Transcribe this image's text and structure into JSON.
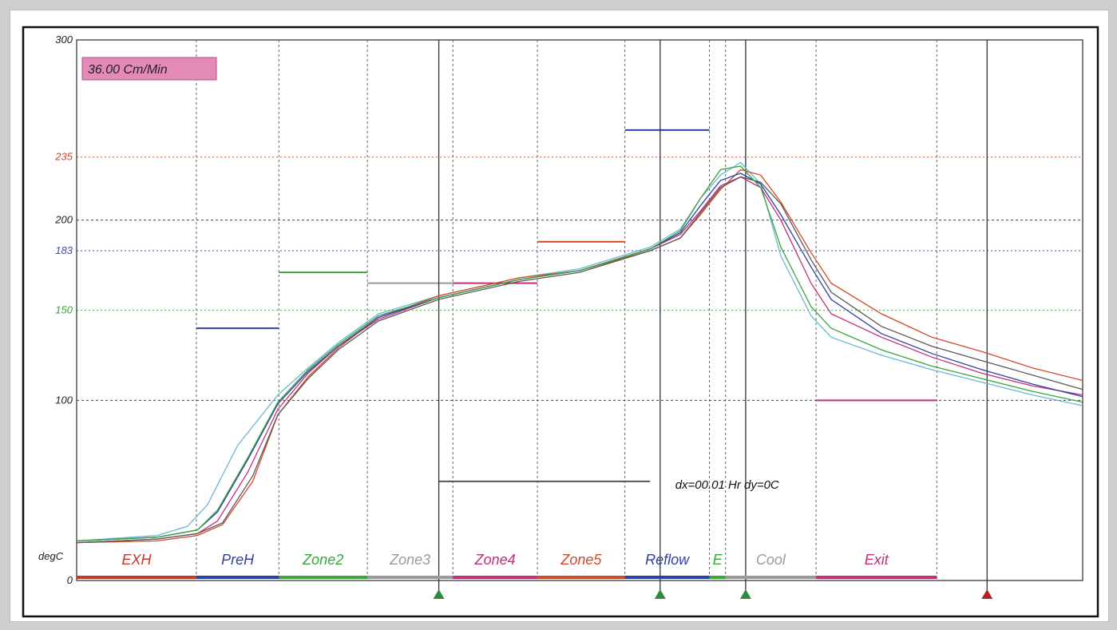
{
  "chart_data": {
    "type": "line",
    "speed_badge": "36.00 Cm/Min",
    "unit_label": "degC",
    "cursor_readout": "dx=00.01 Hr dy=0C",
    "ylim": [
      0,
      300
    ],
    "x_range": [
      0,
      100
    ],
    "y_ticks": [
      {
        "value": 300,
        "label": "300",
        "color": "#222222"
      },
      {
        "value": 235,
        "label": "235",
        "color": "#d04a2a"
      },
      {
        "value": 200,
        "label": "200",
        "color": "#222222"
      },
      {
        "value": 183,
        "label": "183",
        "color": "#3a4ab0"
      },
      {
        "value": 150,
        "label": "150",
        "color": "#3aa53a"
      },
      {
        "value": 100,
        "label": "100",
        "color": "#222222"
      },
      {
        "value": 0,
        "label": "0",
        "color": "#222222"
      }
    ],
    "zones": [
      {
        "name": "EXH",
        "start": 0,
        "end": 11.9,
        "color": "#c0392b",
        "setpoint": 0
      },
      {
        "name": "PreH",
        "start": 11.9,
        "end": 20.1,
        "color": "#2f3fa8",
        "setpoint": 140
      },
      {
        "name": "Zone2",
        "start": 20.1,
        "end": 28.9,
        "color": "#3aa53a",
        "setpoint": 171
      },
      {
        "name": "Zone3",
        "start": 28.9,
        "end": 37.4,
        "color": "#9a9a9a",
        "setpoint": 165
      },
      {
        "name": "Zone4",
        "start": 37.4,
        "end": 45.8,
        "color": "#c2307a",
        "setpoint": 165
      },
      {
        "name": "Zone5",
        "start": 45.8,
        "end": 54.5,
        "color": "#d04a2a",
        "setpoint": 188
      },
      {
        "name": "Reflow",
        "start": 54.5,
        "end": 62.9,
        "color": "#2f3fa8",
        "setpoint": 250
      },
      {
        "name": "E",
        "start": 62.9,
        "end": 64.5,
        "color": "#3aa53a",
        "setpoint": null
      },
      {
        "name": "Cool",
        "start": 64.5,
        "end": 73.5,
        "color": "#9a9a9a",
        "setpoint": null
      },
      {
        "name": "Exit",
        "start": 73.5,
        "end": 85.5,
        "color": "#c2307a",
        "setpoint": 100
      }
    ],
    "reference_lines": [
      {
        "value": 235,
        "color": "#d04a2a"
      },
      {
        "value": 183,
        "color": "#3a4ab0"
      },
      {
        "value": 150,
        "color": "#3aa53a"
      }
    ],
    "cursor_level": {
      "value": 55,
      "x_start": 36,
      "x_end": 57
    },
    "markers": [
      {
        "x": 36.0,
        "color": "#2e8b3a"
      },
      {
        "x": 58.0,
        "color": "#2e8b3a"
      },
      {
        "x": 66.5,
        "color": "#2e8b3a"
      },
      {
        "x": 90.5,
        "color": "#b22222"
      }
    ],
    "series": [
      {
        "color": "#6bb8d6",
        "x": [
          0,
          8,
          11,
          13,
          16,
          20,
          23,
          26,
          30,
          36,
          44,
          50,
          57,
          60,
          62,
          64,
          66,
          68,
          70,
          73,
          75,
          80,
          85,
          90,
          95,
          100
        ],
        "y": [
          22,
          25,
          30,
          42,
          75,
          103,
          118,
          132,
          148,
          158,
          168,
          173,
          185,
          195,
          212,
          225,
          232,
          220,
          180,
          147,
          135,
          125,
          117,
          110,
          103,
          97
        ]
      },
      {
        "color": "#c2307a",
        "x": [
          0,
          8,
          12,
          14,
          17,
          20,
          23,
          26,
          30,
          36,
          44,
          50,
          57,
          60,
          62,
          64,
          66,
          68,
          70,
          73,
          75,
          80,
          85,
          90,
          95,
          100
        ],
        "y": [
          21,
          23,
          26,
          33,
          60,
          95,
          115,
          130,
          145,
          157,
          167,
          172,
          184,
          192,
          205,
          219,
          224,
          218,
          200,
          165,
          148,
          135,
          124,
          115,
          108,
          103
        ]
      },
      {
        "color": "#d04a2a",
        "x": [
          0,
          8,
          12,
          14.5,
          17.5,
          20,
          23,
          26,
          30,
          36,
          44,
          50,
          57,
          60,
          62,
          64,
          66,
          68,
          70,
          73,
          75,
          80,
          85,
          90,
          95,
          100
        ],
        "y": [
          21,
          22,
          25,
          31,
          55,
          92,
          113,
          129,
          146,
          158,
          168,
          172,
          183,
          190,
          203,
          217,
          228,
          225,
          210,
          182,
          165,
          148,
          135,
          127,
          118,
          111
        ]
      },
      {
        "color": "#2f3fa8",
        "x": [
          0,
          8,
          12,
          14,
          17,
          20,
          23,
          26,
          30,
          36,
          44,
          50,
          57,
          60,
          62,
          64,
          66,
          68,
          70,
          73,
          75,
          80,
          85,
          90,
          95,
          100
        ],
        "y": [
          22,
          24,
          28,
          38,
          67,
          98,
          116,
          130,
          146,
          157,
          167,
          172,
          184,
          193,
          208,
          222,
          226,
          220,
          203,
          174,
          156,
          137,
          126,
          117,
          109,
          102
        ]
      },
      {
        "color": "#5a5a5a",
        "x": [
          0,
          8,
          12,
          14.5,
          17.5,
          20,
          23,
          26,
          30,
          36,
          44,
          50,
          57,
          60,
          62,
          64,
          66,
          68,
          70,
          73,
          75,
          80,
          85,
          90,
          95,
          100
        ],
        "y": [
          21,
          23,
          26,
          32,
          58,
          92,
          112,
          128,
          144,
          156,
          166,
          171,
          183,
          190,
          204,
          218,
          224,
          221,
          209,
          178,
          160,
          141,
          130,
          122,
          114,
          106
        ]
      },
      {
        "color": "#3aa53a",
        "x": [
          0,
          8,
          12,
          14,
          17,
          20,
          23,
          26,
          30,
          36,
          44,
          50,
          57,
          60,
          62,
          64,
          66,
          68,
          70,
          73,
          75,
          80,
          85,
          90,
          95,
          100
        ],
        "y": [
          22,
          24,
          28,
          39,
          68,
          99,
          117,
          131,
          147,
          157,
          167,
          172,
          184,
          194,
          212,
          228,
          230,
          218,
          185,
          152,
          140,
          128,
          119,
          112,
          105,
          99
        ]
      }
    ]
  }
}
